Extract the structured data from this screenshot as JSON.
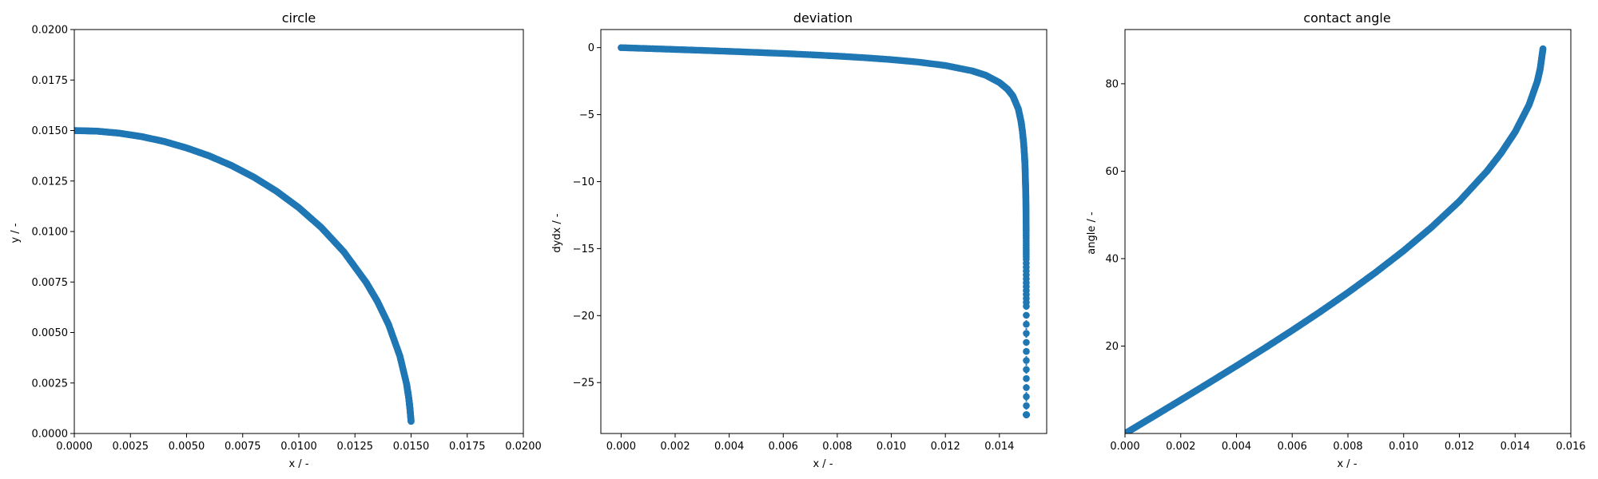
{
  "chart_data": [
    {
      "type": "scatter",
      "title": "circle",
      "xlabel": "x / -",
      "ylabel": "y / -",
      "xlim": [
        0,
        0.02
      ],
      "ylim": [
        0,
        0.02
      ],
      "xticks": [
        "0.0000",
        "0.0025",
        "0.0050",
        "0.0075",
        "0.0100",
        "0.0125",
        "0.0150",
        "0.0175",
        "0.0200"
      ],
      "yticks": [
        "0.0000",
        "0.0025",
        "0.0050",
        "0.0075",
        "0.0100",
        "0.0125",
        "0.0150",
        "0.0175",
        "0.0200"
      ],
      "grid": false,
      "color": "#1f77b4",
      "series": [
        {
          "marker": "circle",
          "line": "dotted",
          "x": [
            0.0,
            0.001,
            0.002,
            0.003,
            0.004,
            0.005,
            0.006,
            0.007,
            0.008,
            0.009,
            0.01,
            0.011,
            0.012,
            0.013,
            0.0135,
            0.014,
            0.0145,
            0.0148,
            0.0149,
            0.01495,
            0.015
          ],
          "y": [
            0.015,
            0.01497,
            0.01487,
            0.0147,
            0.01446,
            0.01414,
            0.01375,
            0.01327,
            0.01269,
            0.012,
            0.01118,
            0.0102,
            0.009,
            0.00748,
            0.00654,
            0.00539,
            0.00384,
            0.00245,
            0.00173,
            0.00122,
            0.0006
          ]
        }
      ]
    },
    {
      "type": "scatter",
      "title": "deviation",
      "xlabel": "x / -",
      "ylabel": "dydx / -",
      "xlim": [
        -0.00075,
        0.01575
      ],
      "ylim": [
        -28.8,
        1.35
      ],
      "xticks": [
        "0.000",
        "0.002",
        "0.004",
        "0.006",
        "0.008",
        "0.010",
        "0.012",
        "0.014"
      ],
      "yticks": [
        "0",
        "−5",
        "−10",
        "−15",
        "−20",
        "−25"
      ],
      "grid": false,
      "color": "#1f77b4",
      "series": [
        {
          "marker": "circle",
          "line": "dotted",
          "x": [
            0.0,
            0.001,
            0.002,
            0.003,
            0.004,
            0.005,
            0.006,
            0.007,
            0.008,
            0.009,
            0.01,
            0.011,
            0.012,
            0.013,
            0.0135,
            0.014,
            0.0143,
            0.0145,
            0.0147,
            0.0148,
            0.01485,
            0.0149,
            0.01493,
            0.01495,
            0.01496,
            0.01497,
            0.01498,
            0.014985,
            0.01499,
            0.014993,
            0.014995,
            0.014997,
            0.0149985
          ],
          "y": [
            0.0,
            -0.067,
            -0.135,
            -0.204,
            -0.277,
            -0.354,
            -0.436,
            -0.527,
            -0.63,
            -0.75,
            -0.894,
            -1.078,
            -1.333,
            -1.738,
            -2.064,
            -2.6,
            -3.1,
            -3.61,
            -4.57,
            -5.5,
            -6.2,
            -7.2,
            -8.1,
            -8.9,
            -9.7,
            -10.4,
            -11.2,
            -12.3,
            -13.7,
            -15.8,
            -19.3,
            -27.4,
            -27.4
          ]
        }
      ]
    },
    {
      "type": "scatter",
      "title": "contact angle",
      "xlabel": "x / -",
      "ylabel": "angle / -",
      "xlim": [
        0,
        0.016
      ],
      "ylim": [
        0.0,
        92.4
      ],
      "xticks": [
        "0.000",
        "0.002",
        "0.004",
        "0.006",
        "0.008",
        "0.010",
        "0.012",
        "0.014",
        "0.016"
      ],
      "yticks": [
        "20",
        "40",
        "60",
        "80"
      ],
      "grid": false,
      "color": "#1f77b4",
      "series": [
        {
          "marker": "circle",
          "line": "dotted",
          "x": [
            0.0,
            0.001,
            0.002,
            0.003,
            0.004,
            0.005,
            0.006,
            0.007,
            0.008,
            0.009,
            0.01,
            0.011,
            0.012,
            0.013,
            0.0135,
            0.014,
            0.0145,
            0.0148,
            0.0149,
            0.015
          ],
          "y": [
            0.0,
            3.82,
            7.66,
            11.54,
            15.47,
            19.47,
            23.58,
            27.82,
            32.23,
            36.87,
            41.81,
            47.17,
            53.13,
            60.07,
            64.16,
            68.96,
            75.16,
            80.6,
            83.4,
            88.0
          ]
        }
      ]
    }
  ]
}
